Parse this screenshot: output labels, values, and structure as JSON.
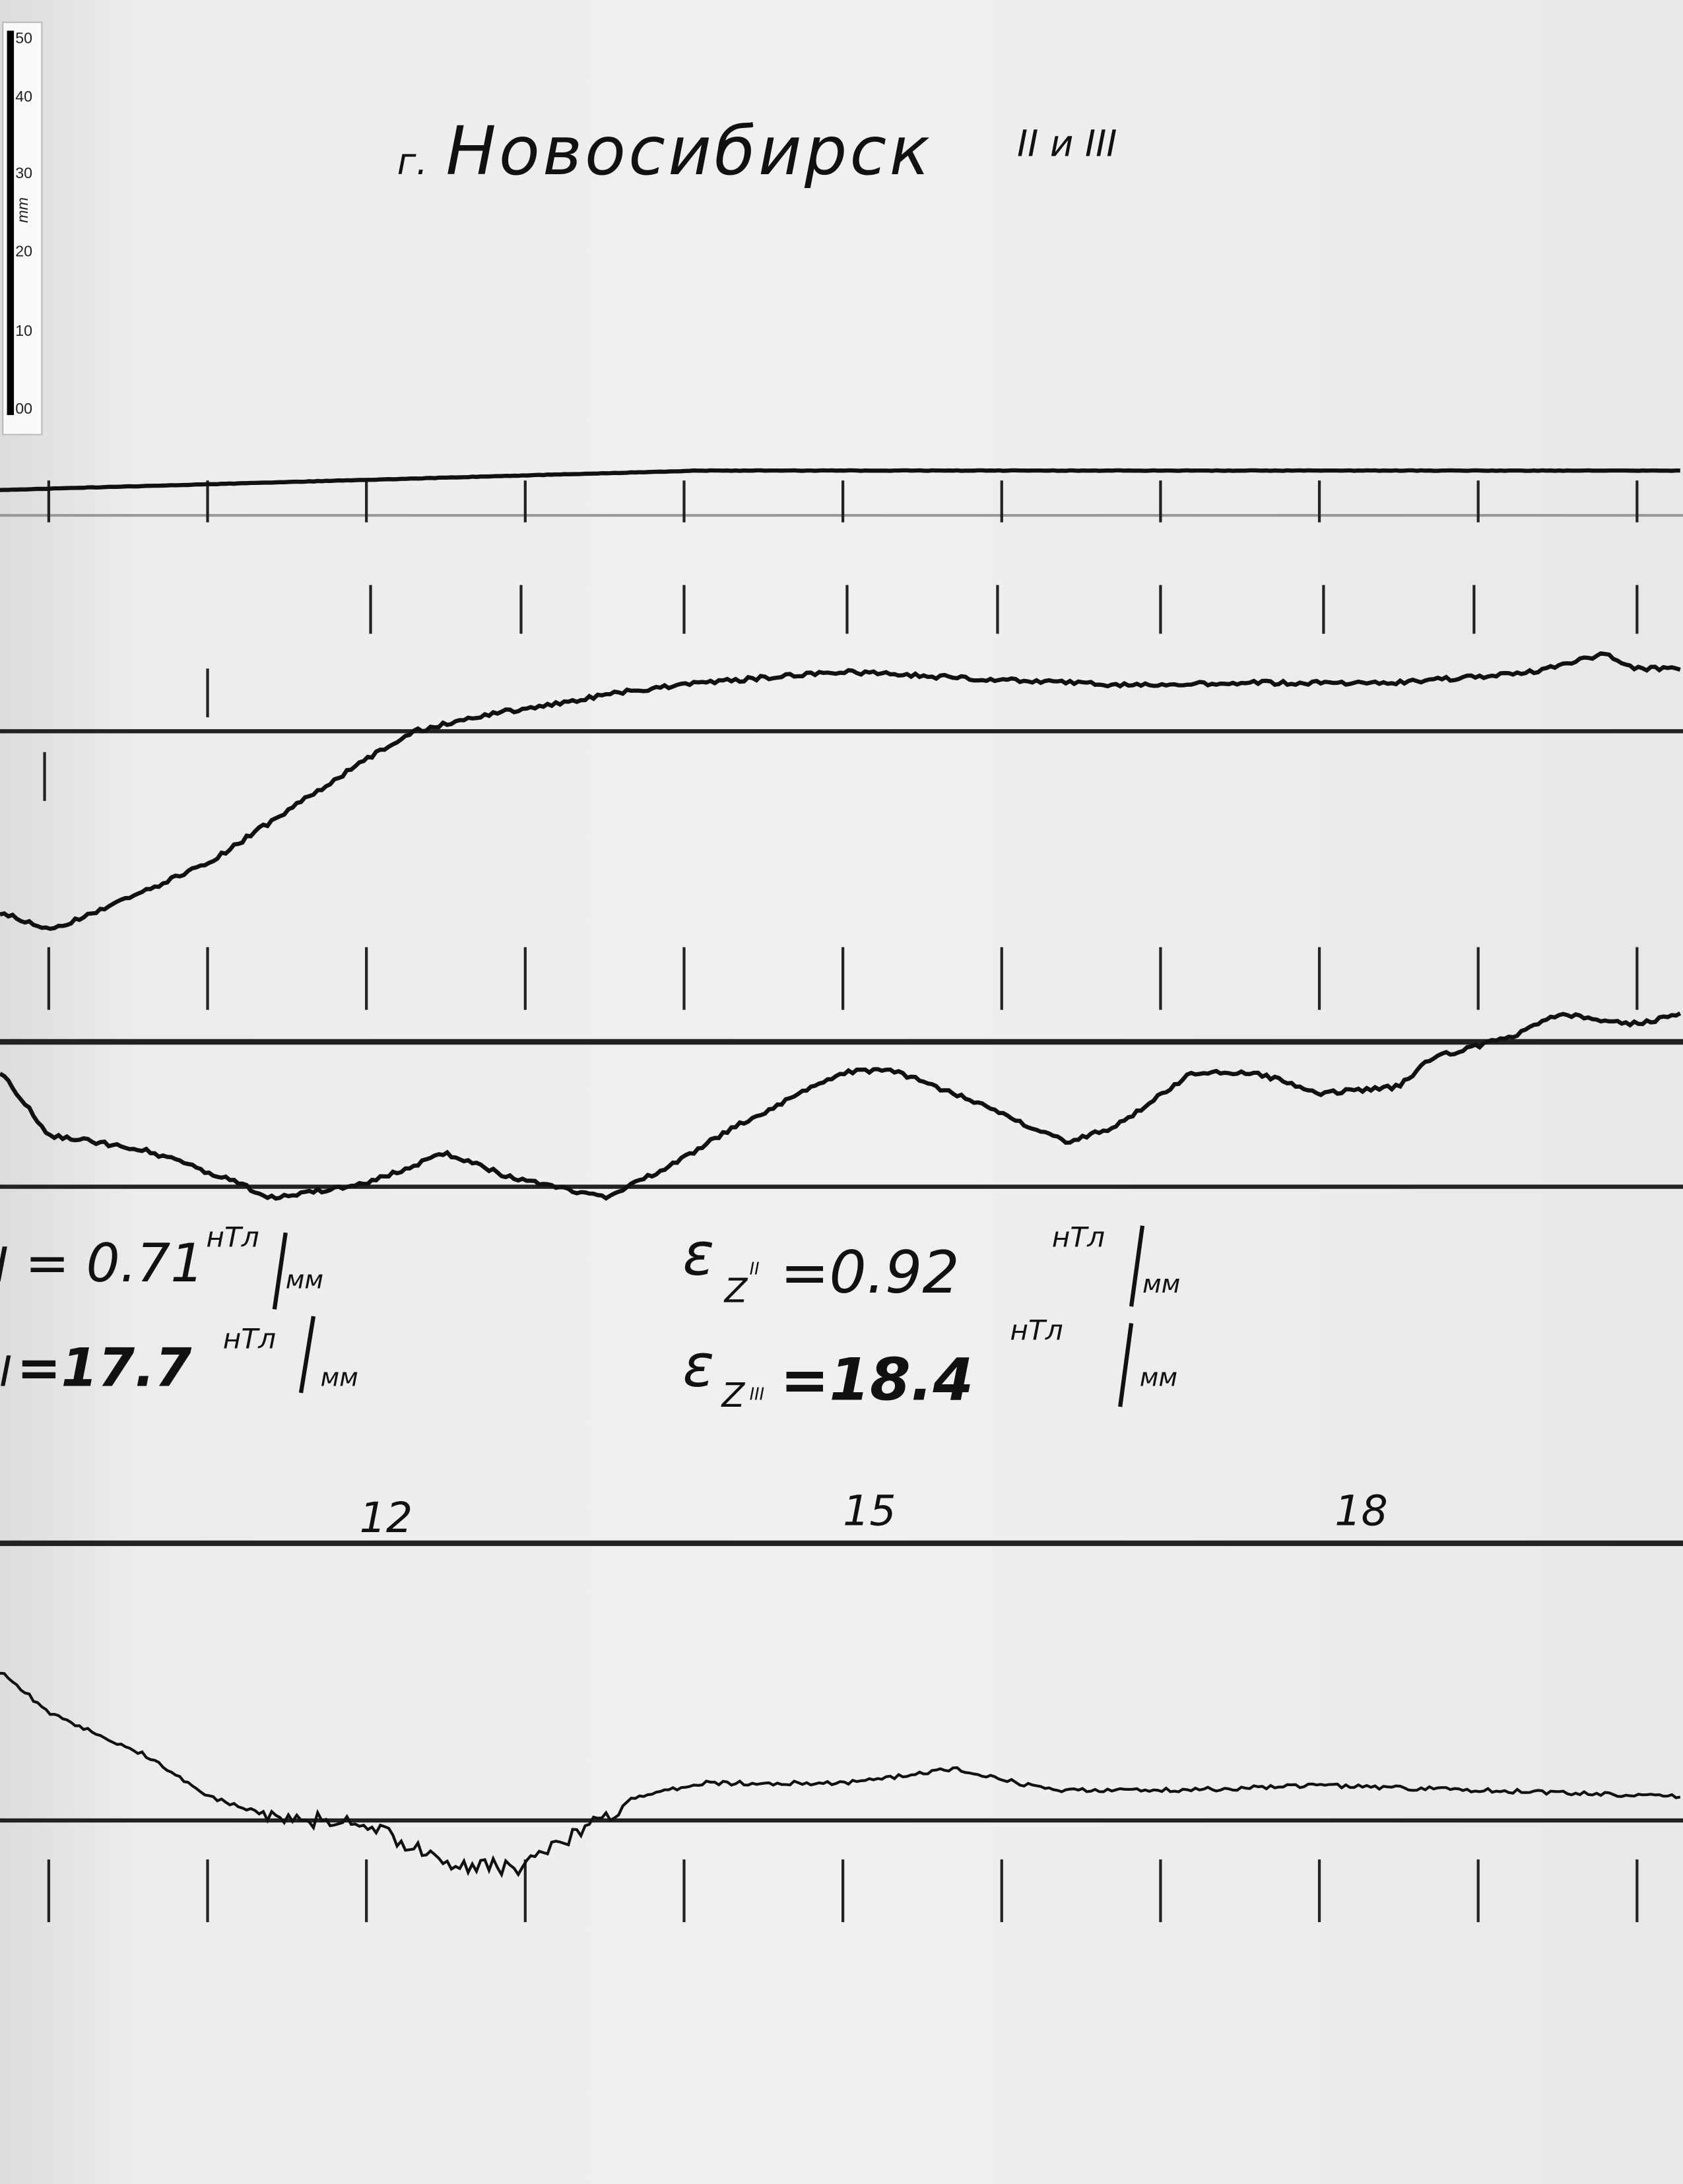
{
  "title": {
    "prefix": "г.",
    "city": "Новосибирск",
    "stations": "II и III"
  },
  "ruler": {
    "unit": "mm",
    "ticks": [
      "50",
      "40",
      "30",
      "20",
      "10",
      "00"
    ]
  },
  "scale_notes": {
    "left": [
      {
        "label": "II",
        "value": "= 0.71",
        "unit_top": "нТл",
        "unit_bottom": "мм"
      },
      {
        "label": "III",
        "value": "=17.7",
        "unit_top": "нТл",
        "unit_bottom": "мм"
      }
    ],
    "right": [
      {
        "symbol": "ε",
        "sub": "Z",
        "label": "II",
        "value": "=0.92",
        "unit_top": "нТл",
        "unit_bottom": "мм"
      },
      {
        "symbol": "ε",
        "sub": "Z",
        "label": "III",
        "value": "=18.4",
        "unit_top": "нТл",
        "unit_bottom": "мм"
      }
    ]
  },
  "hour_labels": [
    "12",
    "15",
    "18"
  ],
  "chart_data": {
    "type": "line",
    "xlabel": "",
    "ylabel": "",
    "x_unit": "hours",
    "y_unit": "mm",
    "xlim": [
      9.7,
      20.3
    ],
    "hour_marks": [
      10,
      11,
      12,
      13,
      14,
      15,
      16,
      17,
      18,
      19,
      20
    ],
    "series": [
      {
        "x": [
          9.7,
          14.1,
          20.3
        ],
        "y": [
          3.4,
          6,
          6
        ]
      },
      {
        "x": [
          9.7,
          10.0,
          10.6,
          11.0,
          11.4,
          12.0,
          12.3,
          12.8,
          13.2,
          13.6,
          14.1,
          15.0,
          15.8,
          16.7,
          17.6,
          18.5,
          19.3,
          19.8,
          20.0,
          20.3
        ],
        "y": [
          -24.3,
          -26.7,
          -21.5,
          -17.7,
          -12.1,
          -3.7,
          0,
          2.4,
          3.7,
          5.2,
          6.5,
          8,
          7.1,
          6.2,
          6.5,
          6.5,
          7.8,
          10.3,
          8.4,
          8.4
        ]
      },
      {
        "x": [
          9.7,
          10.0,
          10.6,
          11.2,
          11.4,
          12.0,
          12.5,
          12.9,
          13.5,
          13.9,
          14.3,
          15.0,
          15.3,
          15.8,
          16.4,
          16.7,
          17.2,
          17.6,
          18.0,
          18.5,
          18.7,
          19.2,
          19.5,
          20.0,
          20.3
        ],
        "y": [
          -4.1,
          -12.5,
          -14.4,
          -19,
          -20.9,
          -19,
          -14.9,
          -18.1,
          -20.9,
          -16.8,
          -11.6,
          -4.1,
          -3.7,
          -7.8,
          -13.4,
          -11.6,
          -4.1,
          -4.1,
          -6.9,
          -6,
          -2.2,
          0.6,
          3.7,
          2.4,
          3.7
        ]
      },
      {
        "x": [
          9.7,
          10.0,
          10.6,
          11.0,
          11.4,
          12.0,
          12.6,
          13.0,
          13.4,
          13.7,
          14.1,
          15.0,
          15.7,
          16.3,
          17.2,
          18.0,
          18.9,
          20.3
        ],
        "y": [
          20,
          14.4,
          8.8,
          3.2,
          0.7,
          -0.6,
          -6.2,
          -6.2,
          -0.6,
          3.2,
          5,
          5,
          6.9,
          4.1,
          4.1,
          4.7,
          4.1,
          3.2
        ]
      }
    ]
  }
}
